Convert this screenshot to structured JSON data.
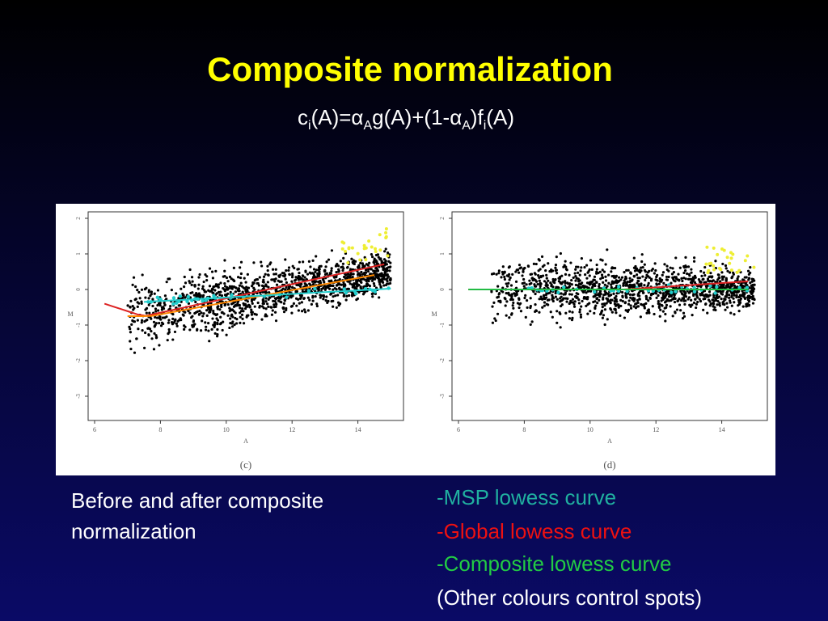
{
  "title": "Composite normalization",
  "formula": {
    "c": "c",
    "c_sub": "i",
    "p1": "(A)=",
    "alpha1": "α",
    "alpha1_sub": "A",
    "p2": "g(A)+(1-",
    "alpha2": "α",
    "alpha2_sub": "A",
    "p3": ")f",
    "f_sub": "i",
    "p4": "(A)"
  },
  "panels": [
    {
      "label": "(c)",
      "x_axis_label": "A",
      "y_axis_label": "M",
      "x_ticks": [
        "6",
        "8",
        "10",
        "12",
        "14"
      ],
      "y_ticks": [
        "2",
        "1",
        "0",
        "-1",
        "-2",
        "-3"
      ]
    },
    {
      "label": "(d)",
      "x_axis_label": "A",
      "y_axis_label": "M",
      "x_ticks": [
        "6",
        "8",
        "10",
        "12",
        "14"
      ],
      "y_ticks": [
        "2",
        "1",
        "0",
        "-1",
        "-2",
        "-3"
      ]
    }
  ],
  "caption": "Before and after composite normalization",
  "legend": [
    "-MSP lowess curve",
    "-Global lowess curve",
    "-Composite lowess curve",
    "(Other colours control spots)"
  ]
}
